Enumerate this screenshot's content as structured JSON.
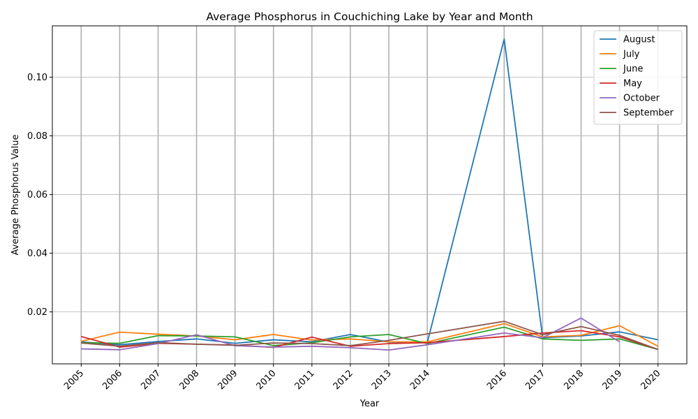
{
  "chart_data": {
    "type": "line",
    "title": "Average Phosphorus in Couchiching Lake by Year and Month",
    "xlabel": "Year",
    "ylabel": "Average Phosphorus Value",
    "x": [
      2005,
      2006,
      2007,
      2008,
      2009,
      2010,
      2011,
      2012,
      2013,
      2014,
      2016,
      2017,
      2018,
      2019,
      2020
    ],
    "x_tick_labels": [
      "2005",
      "2006",
      "2007",
      "2008",
      "2009",
      "2010",
      "2011",
      "2012",
      "2013",
      "2014",
      "2016",
      "2017",
      "2018",
      "2019",
      "2020"
    ],
    "ylim": [
      0.0023,
      0.1175
    ],
    "y_ticks": [
      0.02,
      0.04,
      0.06,
      0.08,
      0.1
    ],
    "y_tick_labels": [
      "0.02",
      "0.04",
      "0.06",
      "0.08",
      "0.10"
    ],
    "grid": true,
    "legend_position": "top-right",
    "series": [
      {
        "name": "August",
        "color": "#1f77b4",
        "values": [
          0.0098,
          0.0088,
          0.0099,
          0.0108,
          0.0093,
          0.0105,
          0.0098,
          0.0123,
          0.0097,
          0.0095,
          0.113,
          0.0112,
          0.0118,
          0.0132,
          0.0105
        ]
      },
      {
        "name": "July",
        "color": "#ff7f0e",
        "values": [
          0.01,
          0.0131,
          0.0124,
          0.0118,
          0.0105,
          0.0123,
          0.0104,
          0.0108,
          0.0098,
          0.0098,
          0.016,
          0.0115,
          0.012,
          0.0153,
          0.0083
        ]
      },
      {
        "name": "June",
        "color": "#2ca02c",
        "values": [
          0.0095,
          0.0093,
          0.0119,
          0.0118,
          0.0115,
          0.0085,
          0.0095,
          0.0115,
          0.0123,
          0.0092,
          0.0148,
          0.0108,
          0.0103,
          0.0108,
          0.0072
        ]
      },
      {
        "name": "May",
        "color": "#d62728",
        "values": [
          0.0116,
          0.008,
          0.0093,
          0.009,
          0.0087,
          0.0079,
          0.0114,
          0.0083,
          0.0092,
          0.0095,
          0.0116,
          0.0128,
          0.0136,
          0.0115,
          0.0072
        ]
      },
      {
        "name": "October",
        "color": "#9467bd",
        "values": [
          0.0074,
          0.0071,
          0.0092,
          0.0122,
          0.0085,
          0.008,
          0.0083,
          0.0078,
          0.007,
          0.0088,
          0.0128,
          0.0112,
          0.0179,
          0.0098,
          null
        ]
      },
      {
        "name": "September",
        "color": "#8c564b",
        "values": [
          0.0094,
          0.0083,
          0.0095,
          0.009,
          0.0086,
          0.0094,
          0.0092,
          0.0085,
          0.0103,
          0.0125,
          0.0168,
          0.0122,
          0.015,
          0.012,
          0.0072
        ]
      }
    ]
  }
}
